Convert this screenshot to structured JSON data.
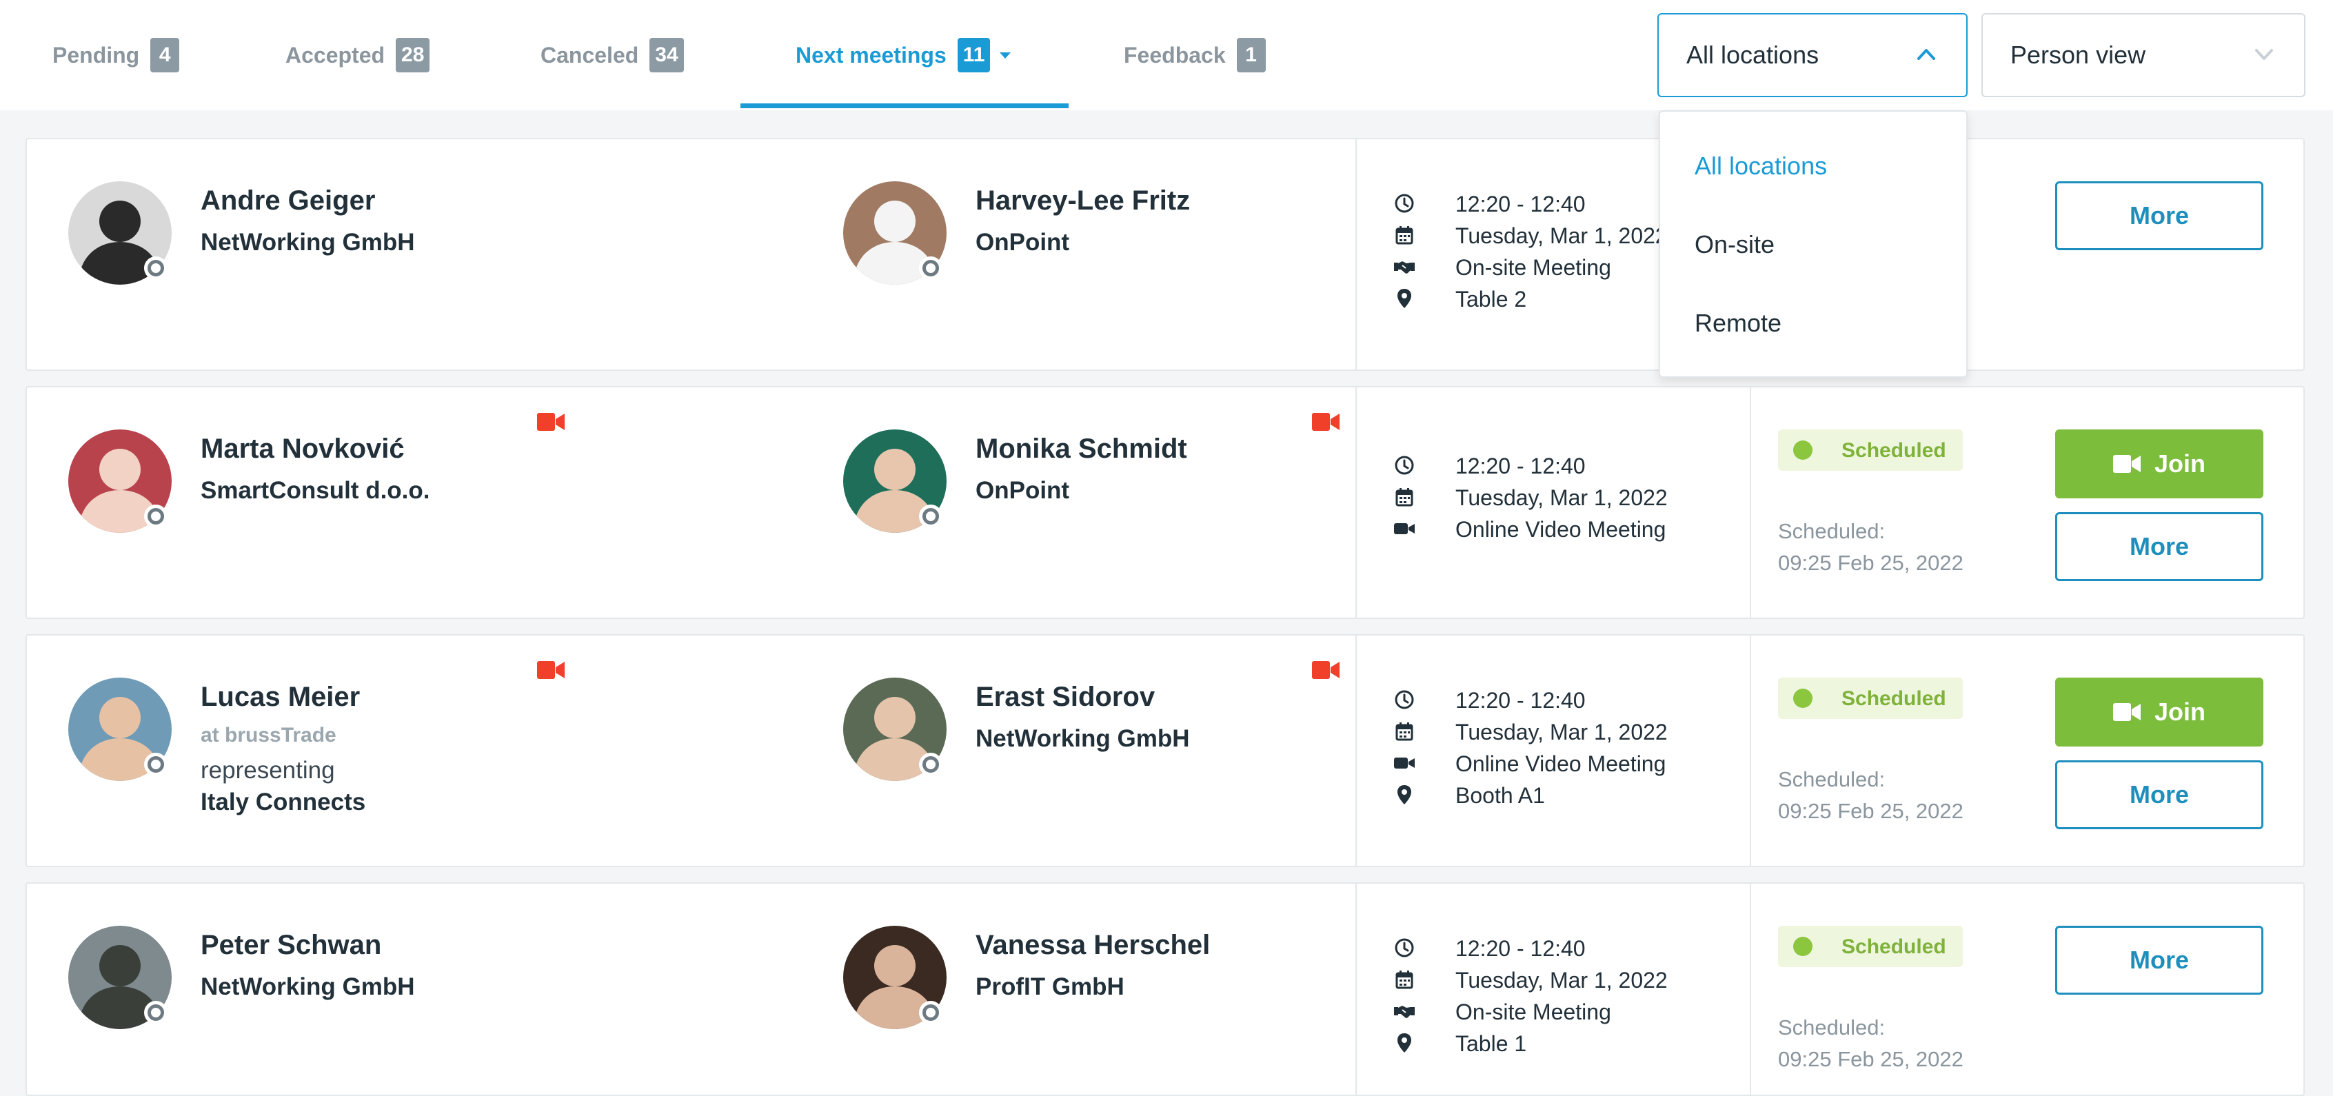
{
  "tabs": [
    {
      "label": "Pending",
      "count": "4"
    },
    {
      "label": "Accepted",
      "count": "28"
    },
    {
      "label": "Canceled",
      "count": "34"
    },
    {
      "label": "Next meetings",
      "count": "11"
    },
    {
      "label": "Feedback",
      "count": "1"
    }
  ],
  "active_tab": "Next meetings",
  "filters": {
    "location": "All locations",
    "view": "Person view"
  },
  "location_dropdown": {
    "options": [
      "All locations",
      "On-site",
      "Remote"
    ],
    "selected": "All locations"
  },
  "colors": {
    "accent": "#1a9bd6",
    "join_green": "#7cbd3c",
    "scheduled_chip": "#eef6de",
    "video_icon_red": "#f0402a",
    "badge_gray": "#8c9aa3"
  },
  "meetings": [
    {
      "left": {
        "name": "Andre Geiger",
        "company": "NetWorking GmbH"
      },
      "right": {
        "name": "Harvey-Lee Fritz",
        "company": "OnPoint"
      },
      "time": "12:20 - 12:40",
      "date": "Tuesday, Mar 1, 2022",
      "type": "On-site Meeting",
      "location": "Table 2",
      "more_label": "More"
    },
    {
      "left": {
        "name": "Marta Novković",
        "company": "SmartConsult d.o.o."
      },
      "right": {
        "name": "Monika Schmidt",
        "company": "OnPoint"
      },
      "time": "12:20 - 12:40",
      "date": "Tuesday, Mar 1, 2022",
      "type": "Online Video Meeting",
      "status": "Scheduled",
      "scheduled_label": "Scheduled:",
      "scheduled_at": "09:25 Feb 25, 2022",
      "join_label": "Join",
      "more_label": "More"
    },
    {
      "left": {
        "name": "Lucas Meier",
        "at": "at brussTrade",
        "representing": "representing",
        "company": "Italy Connects"
      },
      "right": {
        "name": "Erast Sidorov",
        "company": "NetWorking GmbH"
      },
      "time": "12:20 - 12:40",
      "date": "Tuesday, Mar 1, 2022",
      "type": "Online Video Meeting",
      "location": "Booth A1",
      "status": "Scheduled",
      "scheduled_label": "Scheduled:",
      "scheduled_at": "09:25 Feb 25, 2022",
      "join_label": "Join",
      "more_label": "More"
    },
    {
      "left": {
        "name": "Peter Schwan",
        "company": "NetWorking GmbH"
      },
      "right": {
        "name": "Vanessa Herschel",
        "company": "ProfIT GmbH"
      },
      "time": "12:20 - 12:40",
      "date": "Tuesday, Mar 1, 2022",
      "type": "On-site Meeting",
      "location": "Table 1",
      "status": "Scheduled",
      "scheduled_label": "Scheduled:",
      "scheduled_at": "09:25 Feb 25, 2022",
      "more_label": "More"
    }
  ]
}
